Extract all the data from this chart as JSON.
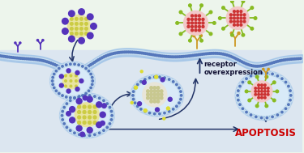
{
  "bg_color": "#edf5ec",
  "cell_bg": "#dce6f0",
  "membrane_color": "#a0c4e8",
  "membrane_inner": "#6699cc",
  "membrane_dot_light": "#c8dff0",
  "membrane_dot_dark": "#5577bb",
  "arrow_color": "#223366",
  "purple_np_core": "#e8e4a0",
  "purple_np_grid": "#cccc44",
  "purple_dot": "#5533bb",
  "red_np_core": "#f2c8c8",
  "red_np_dot": "#cc3333",
  "green_spike": "#88bb22",
  "antibody_left": "#5533bb",
  "antibody_right": "#cc9922",
  "yellow_dot": "#dddd33",
  "endosome_outer": "#88b8dd",
  "endosome_inner": "#d8eaf8",
  "receptor_text": "receptor\noverexpression",
  "apoptosis_text": "APOPTOSIS",
  "apoptosis_color": "#cc0000",
  "font_size_label": 6.0,
  "font_size_apoptosis": 8.5
}
